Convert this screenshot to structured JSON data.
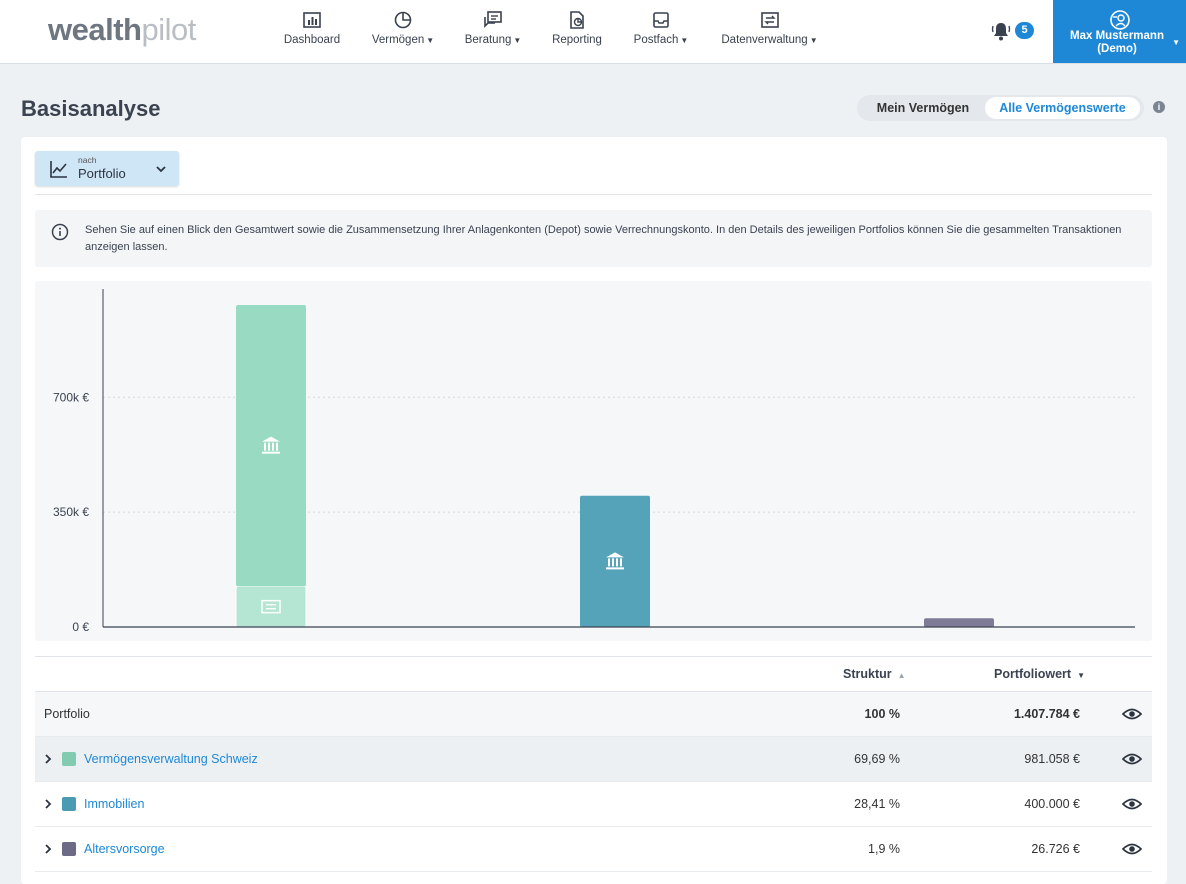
{
  "brand": {
    "logo_w": "wealth",
    "logo_p": "pilot",
    "accent": "#1e88d6"
  },
  "nav": {
    "items": [
      {
        "label": "Dashboard",
        "icon": "bar-chart-icon",
        "dropdown": false
      },
      {
        "label": "Vermögen",
        "icon": "pie-chart-icon",
        "dropdown": true
      },
      {
        "label": "Beratung",
        "icon": "chat-icon",
        "dropdown": true
      },
      {
        "label": "Reporting",
        "icon": "report-icon",
        "dropdown": false
      },
      {
        "label": "Postfach",
        "icon": "inbox-icon",
        "dropdown": true
      },
      {
        "label": "Datenverwaltung",
        "icon": "transfer-icon",
        "dropdown": true
      }
    ],
    "notifications_count": "5",
    "user_name": "Max Mustermann",
    "user_sub": "(Demo)"
  },
  "page": {
    "title": "Basisanalyse",
    "toggle_mine": "Mein Vermögen",
    "toggle_all": "Alle Vermögenswerte",
    "info_icon_label": "i"
  },
  "selector": {
    "prefix": "nach",
    "value": "Portfolio"
  },
  "info_text": "Sehen Sie auf einen Blick den Gesamtwert sowie die Zusammensetzung Ihrer Anlagenkonten (Depot) sowie Verrechnungskonto. In den Details des jeweiligen Portfolios können Sie die gesammelten Transaktionen anzeigen lassen.",
  "chart_data": {
    "type": "bar",
    "stacked": true,
    "categories": [
      "Vermögensverwaltung Schweiz",
      "Immobilien",
      "Altersvorsorge"
    ],
    "series": [
      {
        "name": "Depot",
        "values": [
          857000,
          400000,
          26726
        ],
        "colors": [
          "#98dac2",
          "#55a3b9",
          "#7e7b96"
        ]
      },
      {
        "name": "Verrechnungskonto",
        "values": [
          124058,
          0,
          0
        ],
        "colors": [
          "#b5e6d4",
          "#55a3b9",
          "#7e7b96"
        ]
      }
    ],
    "yticks": [
      "0 €",
      "350k €",
      "700k €"
    ],
    "ytick_values": [
      0,
      350000,
      700000
    ],
    "ylim": [
      0,
      1030000
    ],
    "grid": true
  },
  "table": {
    "col_struktur": "Struktur",
    "col_wert": "Portfoliowert",
    "total": {
      "label": "Portfolio",
      "struktur": "100 %",
      "wert": "1.407.784 €"
    },
    "rows": [
      {
        "name": "Vermögensverwaltung Schweiz",
        "struktur": "69,69 %",
        "wert": "981.058 €",
        "color": "#82cbb0"
      },
      {
        "name": "Immobilien",
        "struktur": "28,41 %",
        "wert": "400.000 €",
        "color": "#4b9cb3"
      },
      {
        "name": "Altersvorsorge",
        "struktur": "1,9 %",
        "wert": "26.726 €",
        "color": "#6d6a86"
      }
    ]
  }
}
